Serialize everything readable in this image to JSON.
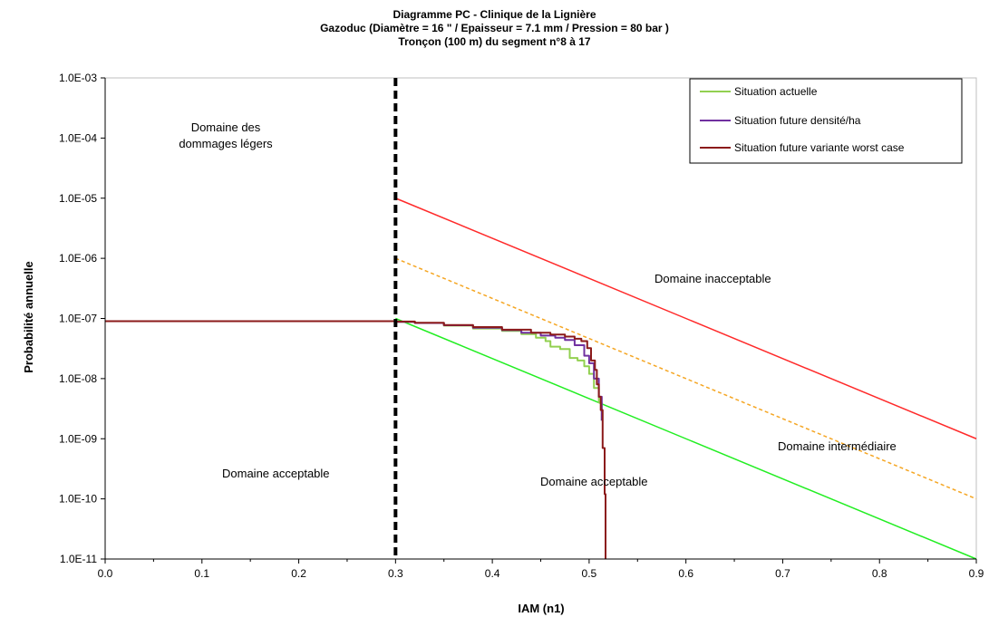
{
  "chart_data": {
    "type": "line",
    "title_lines": [
      "Diagramme PC - Clinique de la Lignière",
      "Gazoduc (Diamètre = 16 \" / Epaisseur = 7.1 mm / Pression = 80 bar )",
      "Tronçon (100 m) du segment n°8 à 17"
    ],
    "xlabel": "IAM (n1)",
    "ylabel": "Probabilité  annuelle",
    "xlim": [
      0.0,
      0.9
    ],
    "x_ticks": [
      "0.0",
      "0.1",
      "0.2",
      "0.3",
      "0.4",
      "0.5",
      "0.6",
      "0.7",
      "0.8",
      "0.9"
    ],
    "y_scale": "log",
    "ylim": [
      1e-11,
      0.001
    ],
    "y_ticks": [
      "1.0E-03",
      "1.0E-04",
      "1.0E-05",
      "1.0E-06",
      "1.0E-07",
      "1.0E-08",
      "1.0E-09",
      "1.0E-10",
      "1.0E-11"
    ],
    "grid": false,
    "legend_position": "top-right",
    "annotations": {
      "light_damage": [
        "Domaine des",
        "dommages légers"
      ],
      "inacceptable": "Domaine inacceptable",
      "intermediate": "Domaine intermédiaire",
      "acceptable_left": "Domaine acceptable",
      "acceptable_right": "Domaine acceptable"
    },
    "vertical_line": {
      "x": 0.3,
      "style": "dashed",
      "color": "#000000"
    },
    "criterion_lines": [
      {
        "points": [
          [
            0.3,
            1e-05
          ],
          [
            0.9,
            1e-09
          ]
        ],
        "color": "#ff2a2a",
        "style": "solid"
      },
      {
        "points": [
          [
            0.3,
            1e-06
          ],
          [
            0.9,
            1e-10
          ]
        ],
        "color": "#f5a623",
        "style": "dashed"
      },
      {
        "points": [
          [
            0.3,
            1e-07
          ],
          [
            0.9,
            1e-11
          ]
        ],
        "color": "#22ee22",
        "style": "solid"
      }
    ],
    "series": [
      {
        "name": "Situation actuelle",
        "color": "#92d050",
        "points": [
          [
            0.0,
            9e-08
          ],
          [
            0.26,
            9e-08
          ],
          [
            0.3,
            8.8e-08
          ],
          [
            0.32,
            8.4e-08
          ],
          [
            0.35,
            7.6e-08
          ],
          [
            0.38,
            6.8e-08
          ],
          [
            0.41,
            6.2e-08
          ],
          [
            0.43,
            5.5e-08
          ],
          [
            0.445,
            4.8e-08
          ],
          [
            0.455,
            4.2e-08
          ],
          [
            0.46,
            3.4e-08
          ],
          [
            0.47,
            3.1e-08
          ],
          [
            0.48,
            2.2e-08
          ],
          [
            0.488,
            2e-08
          ],
          [
            0.495,
            1.6e-08
          ],
          [
            0.5,
            1.2e-08
          ],
          [
            0.505,
            7e-09
          ],
          [
            0.51,
            4e-09
          ],
          [
            0.513,
            2e-09
          ]
        ]
      },
      {
        "name": "Situation future densité/ha",
        "color": "#7030a0",
        "points": [
          [
            0.0,
            9e-08
          ],
          [
            0.26,
            9e-08
          ],
          [
            0.3,
            8.8e-08
          ],
          [
            0.32,
            8.4e-08
          ],
          [
            0.35,
            7.7e-08
          ],
          [
            0.38,
            7e-08
          ],
          [
            0.41,
            6.4e-08
          ],
          [
            0.43,
            5.8e-08
          ],
          [
            0.45,
            5.2e-08
          ],
          [
            0.465,
            4.8e-08
          ],
          [
            0.475,
            4.4e-08
          ],
          [
            0.485,
            3.6e-08
          ],
          [
            0.495,
            2.4e-08
          ],
          [
            0.5,
            1.8e-08
          ],
          [
            0.505,
            1e-08
          ],
          [
            0.51,
            5e-09
          ],
          [
            0.513,
            2e-09
          ]
        ]
      },
      {
        "name": "Situation future variante worst case",
        "color": "#8b1a1a",
        "points": [
          [
            0.0,
            9e-08
          ],
          [
            0.26,
            9e-08
          ],
          [
            0.3,
            8.9e-08
          ],
          [
            0.32,
            8.5e-08
          ],
          [
            0.35,
            7.8e-08
          ],
          [
            0.38,
            7.2e-08
          ],
          [
            0.41,
            6.5e-08
          ],
          [
            0.44,
            5.8e-08
          ],
          [
            0.46,
            5.4e-08
          ],
          [
            0.475,
            5e-08
          ],
          [
            0.485,
            4.6e-08
          ],
          [
            0.492,
            4.2e-08
          ],
          [
            0.498,
            3.2e-08
          ],
          [
            0.502,
            2e-08
          ],
          [
            0.506,
            1.4e-08
          ],
          [
            0.508,
            8e-09
          ],
          [
            0.51,
            5e-09
          ],
          [
            0.512,
            3e-09
          ],
          [
            0.514,
            7e-10
          ],
          [
            0.516,
            1.2e-10
          ],
          [
            0.517,
            1e-11
          ]
        ]
      }
    ]
  }
}
